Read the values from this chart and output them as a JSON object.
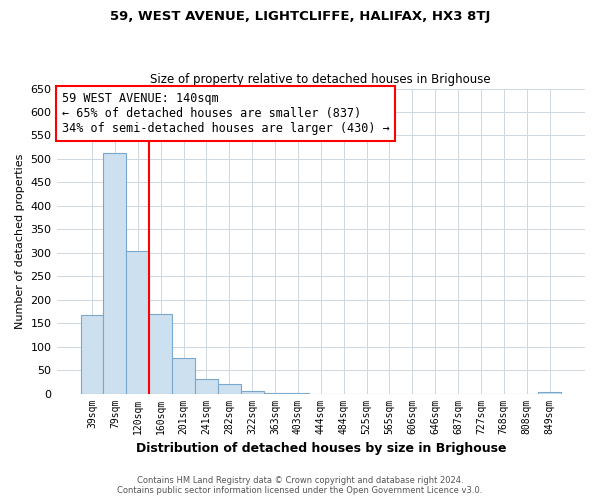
{
  "title": "59, WEST AVENUE, LIGHTCLIFFE, HALIFAX, HX3 8TJ",
  "subtitle": "Size of property relative to detached houses in Brighouse",
  "xlabel": "Distribution of detached houses by size in Brighouse",
  "ylabel": "Number of detached properties",
  "bar_labels": [
    "39sqm",
    "79sqm",
    "120sqm",
    "160sqm",
    "201sqm",
    "241sqm",
    "282sqm",
    "322sqm",
    "363sqm",
    "403sqm",
    "444sqm",
    "484sqm",
    "525sqm",
    "565sqm",
    "606sqm",
    "646sqm",
    "687sqm",
    "727sqm",
    "768sqm",
    "808sqm",
    "849sqm"
  ],
  "bar_values": [
    168,
    512,
    303,
    170,
    76,
    32,
    20,
    5,
    2,
    1,
    0,
    0,
    0,
    0,
    0,
    0,
    0,
    0,
    0,
    0,
    3
  ],
  "bar_color": "#cde0f0",
  "bar_edge_color": "#7aa8cc",
  "grid_color": "#d0d8e0",
  "background_color": "#ffffff",
  "ylim": [
    0,
    650
  ],
  "yticks": [
    0,
    50,
    100,
    150,
    200,
    250,
    300,
    350,
    400,
    450,
    500,
    550,
    600,
    650
  ],
  "property_line_x": 2.5,
  "annotation_title": "59 WEST AVENUE: 140sqm",
  "annotation_line1": "← 65% of detached houses are smaller (837)",
  "annotation_line2": "34% of semi-detached houses are larger (430) →",
  "annotation_box_color": "#ff0000",
  "footer_line1": "Contains HM Land Registry data © Crown copyright and database right 2024.",
  "footer_line2": "Contains public sector information licensed under the Open Government Licence v3.0."
}
